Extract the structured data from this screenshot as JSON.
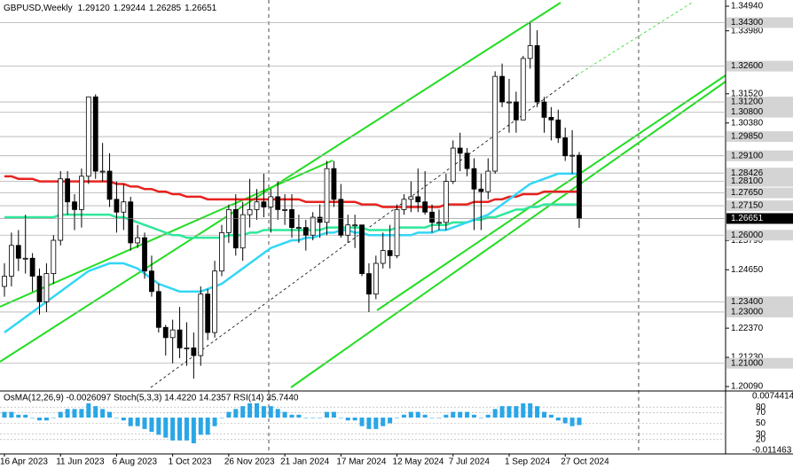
{
  "chart_data": [
    {
      "type": "candlestick",
      "title": "GBPUSD,Weekly",
      "last_bar_labels": [
        "1.29120",
        "1.29244",
        "1.26285",
        "1.26651"
      ],
      "categories": [
        "16 Apr 2023",
        null,
        null,
        null,
        null,
        null,
        null,
        null,
        "11 Jun 2023",
        null,
        null,
        null,
        null,
        null,
        null,
        null,
        "6 Aug 2023",
        null,
        null,
        null,
        null,
        null,
        null,
        null,
        "1 Oct 2023",
        null,
        null,
        null,
        null,
        null,
        null,
        null,
        "26 Nov 2023",
        null,
        null,
        null,
        null,
        null,
        null,
        null,
        "21 Jan 2024",
        null,
        null,
        null,
        null,
        null,
        null,
        null,
        "17 Mar 2024",
        null,
        null,
        null,
        null,
        null,
        null,
        null,
        "12 May 2024",
        null,
        null,
        null,
        null,
        null,
        null,
        null,
        "7 Jul 2024",
        null,
        null,
        null,
        null,
        null,
        null,
        null,
        "1 Sep 2024",
        null,
        null,
        null,
        null,
        null,
        null,
        null,
        "27 Oct 2024",
        null,
        null
      ],
      "open": [
        1.24,
        1.244,
        1.256,
        1.251,
        1.251,
        1.244,
        1.234,
        1.245,
        1.258,
        1.282,
        1.273,
        1.27,
        1.283,
        1.314,
        1.285,
        1.285,
        1.274,
        1.269,
        1.273,
        1.257,
        1.259,
        1.246,
        1.238,
        1.224,
        1.22,
        1.223,
        1.216,
        1.216,
        1.213,
        1.237,
        1.222,
        1.246,
        1.261,
        1.27,
        1.255,
        1.268,
        1.27,
        1.273,
        1.271,
        1.275,
        1.27,
        1.27,
        1.263,
        1.263,
        1.26,
        1.267,
        1.265,
        1.286,
        1.274,
        1.26,
        1.264,
        1.264,
        1.245,
        1.237,
        1.249,
        1.254,
        1.252,
        1.27,
        1.274,
        1.275,
        1.273,
        1.269,
        1.265,
        1.265,
        1.281,
        1.294,
        1.292,
        1.286,
        1.278,
        1.277,
        1.285,
        1.322,
        1.312,
        1.312,
        1.305,
        1.329,
        1.334,
        1.312,
        1.306,
        1.305,
        1.298,
        1.291,
        1.2912
      ],
      "high": [
        1.249,
        1.261,
        1.262,
        1.268,
        1.253,
        1.247,
        1.249,
        1.26,
        1.285,
        1.285,
        1.276,
        1.286,
        1.314,
        1.315,
        1.296,
        1.292,
        1.281,
        1.28,
        1.275,
        1.264,
        1.261,
        1.252,
        1.241,
        1.225,
        1.227,
        1.232,
        1.226,
        1.222,
        1.24,
        1.239,
        1.25,
        1.264,
        1.272,
        1.276,
        1.273,
        1.282,
        1.278,
        1.284,
        1.278,
        1.281,
        1.276,
        1.276,
        1.268,
        1.266,
        1.269,
        1.272,
        1.289,
        1.289,
        1.28,
        1.268,
        1.268,
        1.264,
        1.249,
        1.252,
        1.261,
        1.264,
        1.272,
        1.276,
        1.281,
        1.286,
        1.285,
        1.272,
        1.27,
        1.284,
        1.297,
        1.3,
        1.294,
        1.29,
        1.284,
        1.29,
        1.324,
        1.327,
        1.321,
        1.316,
        1.33,
        1.343,
        1.34,
        1.314,
        1.31,
        1.309,
        1.302,
        1.301,
        1.29244
      ],
      "low": [
        1.236,
        1.24,
        1.246,
        1.245,
        1.238,
        1.229,
        1.23,
        1.241,
        1.256,
        1.268,
        1.262,
        1.263,
        1.28,
        1.282,
        1.281,
        1.271,
        1.261,
        1.262,
        1.254,
        1.255,
        1.243,
        1.236,
        1.222,
        1.213,
        1.21,
        1.212,
        1.209,
        1.204,
        1.209,
        1.219,
        1.22,
        1.244,
        1.257,
        1.252,
        1.25,
        1.263,
        1.266,
        1.267,
        1.261,
        1.266,
        1.264,
        1.259,
        1.257,
        1.254,
        1.258,
        1.259,
        1.26,
        1.271,
        1.259,
        1.257,
        1.255,
        1.244,
        1.23,
        1.235,
        1.247,
        1.247,
        1.251,
        1.268,
        1.269,
        1.269,
        1.268,
        1.261,
        1.262,
        1.262,
        1.28,
        1.285,
        1.283,
        1.262,
        1.262,
        1.274,
        1.284,
        1.31,
        1.3,
        1.3,
        1.305,
        1.325,
        1.31,
        1.3,
        1.297,
        1.296,
        1.289,
        1.284,
        1.26285
      ],
      "close": [
        1.244,
        1.256,
        1.251,
        1.251,
        1.244,
        1.234,
        1.245,
        1.258,
        1.282,
        1.273,
        1.27,
        1.283,
        1.314,
        1.285,
        1.285,
        1.274,
        1.269,
        1.273,
        1.257,
        1.259,
        1.246,
        1.238,
        1.224,
        1.22,
        1.223,
        1.216,
        1.216,
        1.213,
        1.237,
        1.222,
        1.246,
        1.261,
        1.27,
        1.255,
        1.268,
        1.27,
        1.273,
        1.271,
        1.275,
        1.27,
        1.27,
        1.263,
        1.263,
        1.26,
        1.267,
        1.265,
        1.286,
        1.274,
        1.26,
        1.264,
        1.264,
        1.245,
        1.237,
        1.249,
        1.254,
        1.252,
        1.27,
        1.274,
        1.275,
        1.273,
        1.269,
        1.265,
        1.265,
        1.281,
        1.294,
        1.292,
        1.286,
        1.278,
        1.277,
        1.285,
        1.322,
        1.312,
        1.312,
        1.305,
        1.329,
        1.334,
        1.312,
        1.306,
        1.305,
        1.298,
        1.291,
        1.2912,
        1.26651
      ],
      "series": [
        {
          "color": "#e8231f",
          "values": [
            1.283,
            1.283,
            1.282,
            1.282,
            1.282,
            1.281,
            1.281,
            1.281,
            1.281,
            1.281,
            1.281,
            1.281,
            1.281,
            1.281,
            1.281,
            1.281,
            1.28,
            1.28,
            1.279,
            1.279,
            1.278,
            1.278,
            1.277,
            1.277,
            1.276,
            1.276,
            1.275,
            1.275,
            1.275,
            1.274,
            1.274,
            1.274,
            1.274,
            1.274,
            1.274,
            1.274,
            1.274,
            1.274,
            1.274,
            1.274,
            1.274,
            1.274,
            1.274,
            1.273,
            1.273,
            1.273,
            1.273,
            1.273,
            1.273,
            1.273,
            1.273,
            1.272,
            1.272,
            1.272,
            1.271,
            1.271,
            1.271,
            1.271,
            1.271,
            1.271,
            1.271,
            1.271,
            1.271,
            1.272,
            1.272,
            1.272,
            1.272,
            1.273,
            1.273,
            1.273,
            1.274,
            1.274,
            1.275,
            1.275,
            1.276,
            1.276,
            1.276,
            1.277,
            1.277,
            1.277,
            1.277,
            1.277,
            1.277
          ]
        },
        {
          "color": "#2ee89a",
          "values": [
            1.267,
            1.267,
            1.267,
            1.267,
            1.267,
            1.267,
            1.267,
            1.267,
            1.268,
            1.268,
            1.268,
            1.268,
            1.268,
            1.268,
            1.268,
            1.268,
            1.267,
            1.267,
            1.266,
            1.265,
            1.264,
            1.263,
            1.262,
            1.261,
            1.26,
            1.26,
            1.259,
            1.259,
            1.259,
            1.259,
            1.259,
            1.259,
            1.26,
            1.26,
            1.26,
            1.261,
            1.261,
            1.262,
            1.262,
            1.262,
            1.262,
            1.262,
            1.262,
            1.262,
            1.262,
            1.262,
            1.263,
            1.263,
            1.263,
            1.263,
            1.263,
            1.263,
            1.262,
            1.262,
            1.262,
            1.262,
            1.263,
            1.263,
            1.263,
            1.263,
            1.263,
            1.264,
            1.264,
            1.264,
            1.265,
            1.265,
            1.265,
            1.266,
            1.266,
            1.267,
            1.267,
            1.268,
            1.269,
            1.27,
            1.27,
            1.271,
            1.271,
            1.272,
            1.272,
            1.272,
            1.272,
            1.272,
            1.272
          ]
        },
        {
          "color": "#33d6f5",
          "values": [
            1.222,
            1.224,
            1.226,
            1.228,
            1.23,
            1.232,
            1.234,
            1.236,
            1.238,
            1.24,
            1.242,
            1.244,
            1.246,
            1.247,
            1.248,
            1.249,
            1.249,
            1.249,
            1.248,
            1.247,
            1.245,
            1.243,
            1.241,
            1.24,
            1.239,
            1.238,
            1.238,
            1.238,
            1.238,
            1.239,
            1.24,
            1.241,
            1.243,
            1.245,
            1.247,
            1.249,
            1.251,
            1.253,
            1.255,
            1.256,
            1.257,
            1.258,
            1.258,
            1.259,
            1.259,
            1.26,
            1.261,
            1.261,
            1.262,
            1.262,
            1.261,
            1.261,
            1.26,
            1.26,
            1.26,
            1.26,
            1.26,
            1.26,
            1.26,
            1.261,
            1.261,
            1.261,
            1.262,
            1.262,
            1.263,
            1.264,
            1.265,
            1.266,
            1.267,
            1.268,
            1.27,
            1.272,
            1.274,
            1.276,
            1.278,
            1.28,
            1.281,
            1.282,
            1.283,
            1.284,
            1.284,
            1.284,
            1.284
          ]
        }
      ],
      "ylim": [
        1.19917,
        1.35182
      ],
      "yticks": [
        {
          "value": 1.3494,
          "label": "1.34940"
        },
        {
          "value": 1.3398,
          "label": "1.33980"
        },
        {
          "value": 1.3152,
          "label": "1.31520"
        },
        {
          "value": 1.3038,
          "label": "1.30380"
        },
        {
          "value": 1.2579,
          "label": "1.25790"
        },
        {
          "value": 1.2465,
          "label": "1.24650"
        },
        {
          "value": 1.2237,
          "label": "1.22370"
        },
        {
          "value": 1.2123,
          "label": "1.21230"
        },
        {
          "value": 1.2009,
          "label": "1.20090"
        }
      ],
      "levels": [
        {
          "value": 1.343,
          "label": "1.34300"
        },
        {
          "value": 1.326,
          "label": "1.32600"
        },
        {
          "value": 1.312,
          "label": "1.31200"
        },
        {
          "value": 1.308,
          "label": "1.30800"
        },
        {
          "value": 1.2985,
          "label": "1.29850"
        },
        {
          "value": 1.291,
          "label": "1.29100"
        },
        {
          "value": 1.28426,
          "label": "1.28426"
        },
        {
          "value": 1.281,
          "label": "1.28100"
        },
        {
          "value": 1.2765,
          "label": "1.27650"
        },
        {
          "value": 1.2715,
          "label": "1.27150"
        },
        {
          "value": 1.26,
          "label": "1.26000"
        },
        {
          "value": 1.234,
          "label": "1.23400"
        },
        {
          "value": 1.23,
          "label": "1.23000"
        },
        {
          "value": 1.21,
          "label": "1.21000"
        }
      ],
      "level_color": "#b0b0b0",
      "up_color": "#ffffff",
      "down_color": "#000000"
    },
    {
      "type": "osma",
      "title": "OsMA(12,26,9) -0.0026097 Stoch(5,3,3) 14.4220 14.2357 RSI(14) 35.7440",
      "values": [
        0.002,
        0.002,
        0.001,
        0.001,
        0.0,
        -0.001,
        -0.001,
        0.0,
        0.002,
        0.003,
        0.003,
        0.003,
        0.005,
        0.004,
        0.003,
        0.002,
        0.0,
        -0.001,
        -0.003,
        -0.003,
        -0.004,
        -0.005,
        -0.006,
        -0.007,
        -0.008,
        -0.008,
        -0.008,
        -0.009,
        -0.006,
        -0.006,
        -0.003,
        0.0,
        0.002,
        0.003,
        0.004,
        0.005,
        0.005,
        0.004,
        0.004,
        0.003,
        0.002,
        0.001,
        0.001,
        0.0,
        0.0,
        0.0,
        0.002,
        0.002,
        0.0,
        -0.001,
        -0.001,
        -0.003,
        -0.004,
        -0.004,
        -0.003,
        -0.002,
        0.0,
        0.001,
        0.002,
        0.002,
        0.001,
        0.0,
        0.0,
        0.001,
        0.002,
        0.002,
        0.002,
        0.001,
        0.0,
        0.001,
        0.003,
        0.004,
        0.004,
        0.004,
        0.005,
        0.005,
        0.004,
        0.002,
        0.001,
        -0.001,
        -0.002,
        -0.003,
        -0.0026097
      ],
      "color": "#2aa6e6",
      "ylim": [
        -0.011463,
        0.0074414
      ],
      "yticks": [
        0.0074414,
        -0.011463
      ],
      "osc_ylim": [
        0,
        100
      ],
      "osc_yticks": [
        80,
        70,
        50,
        30,
        20
      ]
    }
  ]
}
